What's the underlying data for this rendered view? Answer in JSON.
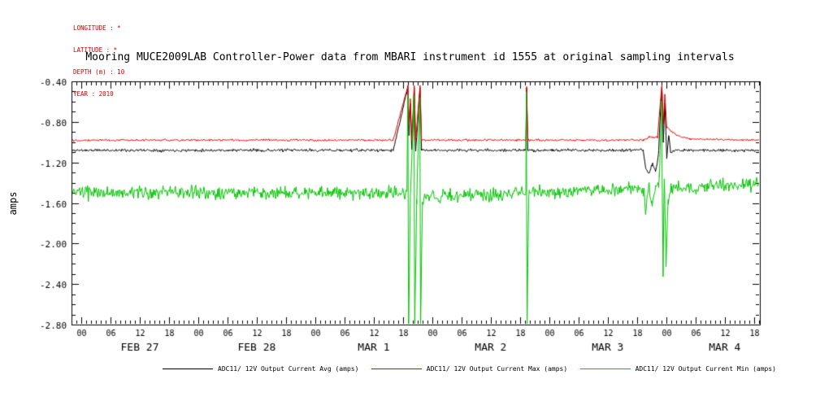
{
  "header": {
    "meta_lines": [
      "LONGITUDE : *",
      "LATITUDE : *",
      "DEPTH (m) : 10",
      "YEAR : 2010"
    ]
  },
  "colors": {
    "metadata_text": "#cc0000",
    "frame": "#000000",
    "background": "#ffffff"
  },
  "chart_data": {
    "type": "line",
    "title": "Mooring MUCE2009LAB Controller-Power data from MBARI instrument id 1555 at original sampling intervals",
    "xlabel": "",
    "ylabel": "amps",
    "ylim": [
      -2.8,
      -0.4
    ],
    "y_major_step": 0.4,
    "y_minor_step": 0.1,
    "y_tick_labels": [
      "-0.40",
      "-0.80",
      "-1.20",
      "-1.60",
      "-2.00",
      "-2.40",
      "-2.80"
    ],
    "x_hours": [
      -2,
      139.2
    ],
    "x_major_step_hours": 6,
    "x_minor_step_hours": 1,
    "grid": false,
    "legend_position": "bottom",
    "day_labels": [
      {
        "label": "FEB 27",
        "hour": 12
      },
      {
        "label": "FEB 28",
        "hour": 36
      },
      {
        "label": "MAR 1",
        "hour": 60
      },
      {
        "label": "MAR 2",
        "hour": 84
      },
      {
        "label": "MAR 3",
        "hour": 108
      },
      {
        "label": "MAR 4",
        "hour": 132
      }
    ],
    "series": [
      {
        "name": "ADC11/ 12V Output Current Avg (amps)",
        "color": "#000000",
        "noise": 0.007,
        "seed": 11,
        "anchors": [
          [
            -2,
            -1.08
          ],
          [
            64,
            -1.08
          ],
          [
            67,
            -0.46
          ],
          [
            67.2,
            -0.93
          ],
          [
            67.5,
            -0.62
          ],
          [
            67.8,
            -1.08
          ],
          [
            68.3,
            -0.46
          ],
          [
            68.6,
            -1.08
          ],
          [
            69.5,
            -0.46
          ],
          [
            69.8,
            -1.08
          ],
          [
            91.2,
            -1.08
          ],
          [
            91.35,
            -0.46
          ],
          [
            91.6,
            -1.08
          ],
          [
            115.3,
            -1.08
          ],
          [
            115.8,
            -1.26
          ],
          [
            116.5,
            -1.31
          ],
          [
            117.2,
            -1.21
          ],
          [
            117.8,
            -1.29
          ],
          [
            118.4,
            -1.13
          ],
          [
            118.8,
            -0.7
          ],
          [
            119.1,
            -0.46
          ],
          [
            119.4,
            -1.0
          ],
          [
            119.7,
            -0.6
          ],
          [
            120.1,
            -1.16
          ],
          [
            120.5,
            -0.93
          ],
          [
            120.9,
            -1.1
          ],
          [
            122,
            -1.08
          ],
          [
            139.2,
            -1.08
          ]
        ]
      },
      {
        "name": "ADC11/ 12V Output Current Max (amps)",
        "color": "#e00000",
        "noise": 0.005,
        "seed": 22,
        "anchors": [
          [
            -2,
            -0.98
          ],
          [
            64,
            -0.98
          ],
          [
            67,
            -0.44
          ],
          [
            67.2,
            -0.82
          ],
          [
            67.5,
            -0.58
          ],
          [
            67.8,
            -0.98
          ],
          [
            68.3,
            -0.44
          ],
          [
            68.6,
            -0.98
          ],
          [
            69.5,
            -0.44
          ],
          [
            69.8,
            -0.98
          ],
          [
            91.2,
            -0.98
          ],
          [
            91.35,
            -0.44
          ],
          [
            91.6,
            -0.98
          ],
          [
            115.3,
            -0.98
          ],
          [
            116.5,
            -0.95
          ],
          [
            118.2,
            -0.95
          ],
          [
            118.8,
            -0.6
          ],
          [
            119.1,
            -0.44
          ],
          [
            119.4,
            -0.82
          ],
          [
            119.7,
            -0.52
          ],
          [
            120.1,
            -0.85
          ],
          [
            120.8,
            -0.88
          ],
          [
            122,
            -0.93
          ],
          [
            125,
            -0.97
          ],
          [
            139.2,
            -0.98
          ]
        ]
      },
      {
        "name": "ADC11/ 12V Output Current Min (amps)",
        "color": "#00c400",
        "noise": 0.032,
        "seed": 33,
        "anchors": [
          [
            -2,
            -1.5
          ],
          [
            66.8,
            -1.5
          ],
          [
            67,
            -0.55
          ],
          [
            67.15,
            -2.85
          ],
          [
            67.5,
            -1.56
          ],
          [
            68.25,
            -0.55
          ],
          [
            68.4,
            -2.85
          ],
          [
            68.8,
            -1.56
          ],
          [
            69.45,
            -0.55
          ],
          [
            69.6,
            -2.85
          ],
          [
            70,
            -1.54
          ],
          [
            91.2,
            -1.5
          ],
          [
            91.3,
            -0.55
          ],
          [
            91.45,
            -2.85
          ],
          [
            91.8,
            -1.5
          ],
          [
            115.3,
            -1.46
          ],
          [
            115.8,
            -1.68
          ],
          [
            116.4,
            -1.42
          ],
          [
            117,
            -1.64
          ],
          [
            117.8,
            -1.46
          ],
          [
            118.6,
            -1.35
          ],
          [
            119,
            -0.6
          ],
          [
            119.35,
            -2.25
          ],
          [
            119.6,
            -1.28
          ],
          [
            119.95,
            -2.18
          ],
          [
            120.4,
            -1.56
          ],
          [
            121,
            -1.45
          ],
          [
            139.2,
            -1.42
          ]
        ]
      }
    ]
  }
}
